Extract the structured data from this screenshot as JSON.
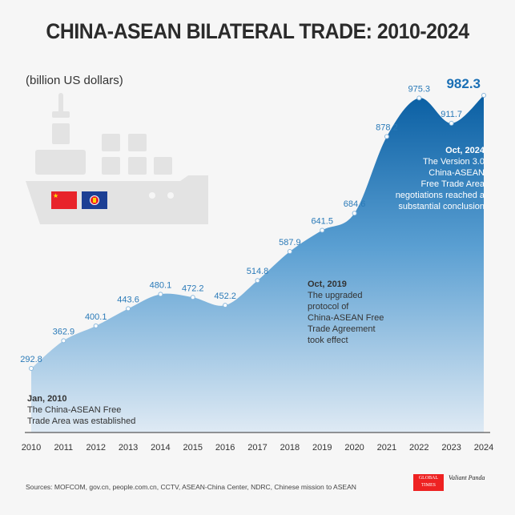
{
  "title": "CHINA-ASEAN BILATERAL TRADE: 2010-2024",
  "unit": "(billion US dollars)",
  "chart_data": {
    "type": "area",
    "title": "CHINA-ASEAN BILATERAL TRADE: 2010-2024",
    "ylabel": "billion US dollars",
    "x": [
      "2010",
      "2011",
      "2012",
      "2013",
      "2014",
      "2015",
      "2016",
      "2017",
      "2018",
      "2019",
      "2020",
      "2021",
      "2022",
      "2023",
      "2024"
    ],
    "values": [
      292.8,
      362.9,
      400.1,
      443.6,
      480.1,
      472.2,
      452.2,
      514.8,
      587.9,
      641.5,
      684.6,
      878.2,
      975.3,
      911.7,
      982.3
    ],
    "labels": [
      "292.8",
      "362.9",
      "400.1",
      "443.6",
      "480.1",
      "472.2",
      "452.2",
      "514.8",
      "587.9",
      "641.5",
      "684.6",
      "878.2",
      "975.3",
      "911.7",
      "982.3"
    ],
    "colors": {
      "top": "#0a5fa3",
      "bottom": "#dfeaf4",
      "label": "#2a7ab8",
      "highlight": "#1a6fb5"
    },
    "annotations": [
      {
        "title": "Jan, 2010",
        "text": [
          "The China-ASEAN Free",
          "Trade Area was established"
        ]
      },
      {
        "title": "Oct, 2019",
        "text": [
          "The upgraded",
          "protocol of",
          "China-ASEAN Free",
          "Trade Agreement",
          "took effect"
        ]
      },
      {
        "title": "Oct, 2024",
        "text": [
          "The Version 3.0",
          "China-ASEAN",
          "Free Trade Area",
          "negotiations reached a",
          "substantial conclusion"
        ]
      }
    ]
  },
  "sources": "Sources: MOFCOM, gov.cn, people.com.cn, CCTV, ASEAN-China Center, NDRC, Chinese mission to ASEAN",
  "logos": {
    "gt": "GLOBAL TIMES",
    "vp": "Valiant Panda"
  }
}
